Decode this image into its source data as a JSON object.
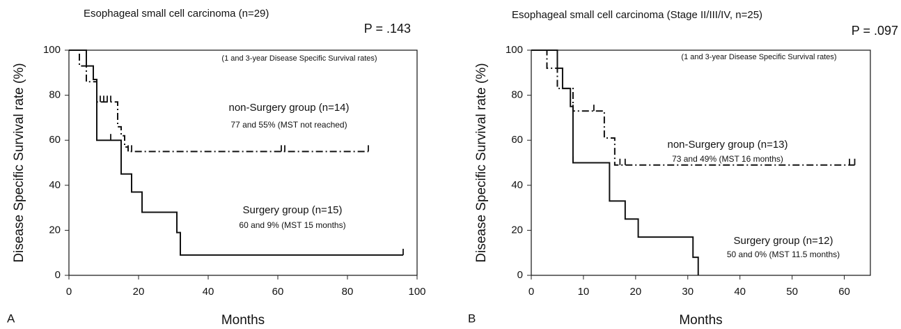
{
  "chart_data": [
    {
      "type": "step",
      "panel": "A",
      "title": "Esophageal small cell carcinoma (n=29)",
      "p_value": "P = .143",
      "subtitle": "(1 and 3-year Disease Specific Survival rates)",
      "x_label": "Months",
      "y_label": "Disease Specific Survival rate (%)",
      "xlim": [
        0,
        100
      ],
      "xticks": [
        0,
        20,
        40,
        60,
        80,
        100
      ],
      "ylim": [
        0,
        100
      ],
      "yticks": [
        0,
        20,
        40,
        60,
        80,
        100
      ],
      "series": [
        {
          "name": "non-Surgery group (n=14)",
          "note": "77 and 55% (MST not reached)",
          "color": "#111111",
          "dash": "dashdot",
          "x": [
            0,
            3,
            5,
            8,
            14,
            15,
            16,
            17,
            86
          ],
          "values": [
            100,
            93,
            86,
            77,
            66,
            62,
            57,
            55,
            55
          ],
          "censored": [
            9,
            10,
            11,
            12,
            17,
            18,
            61,
            62,
            86
          ]
        },
        {
          "name": "Surgery group (n=15)",
          "note": "60 and 9% (MST 15 months)",
          "color": "#111111",
          "dash": "solid",
          "x": [
            0,
            5,
            7,
            8,
            15,
            18,
            21,
            31,
            32,
            96
          ],
          "values": [
            100,
            93,
            87,
            60,
            45,
            37,
            28,
            19,
            9,
            9
          ],
          "censored": [
            12,
            96
          ]
        }
      ]
    },
    {
      "type": "step",
      "panel": "B",
      "title": "Esophageal small cell carcinoma (Stage II/III/IV, n=25)",
      "p_value": "P = .097",
      "subtitle": "(1 and 3-year Disease Specific Survival rates)",
      "x_label": "Months",
      "y_label": "Disease Specific Survival rate (%)",
      "xlim": [
        0,
        65
      ],
      "xticks": [
        0,
        10,
        20,
        30,
        40,
        50,
        60
      ],
      "ylim": [
        0,
        100
      ],
      "yticks": [
        0,
        20,
        40,
        60,
        80,
        100
      ],
      "series": [
        {
          "name": "non-Surgery group (n=13)",
          "note": "73 and 49% (MST 16 months)",
          "color": "#111111",
          "dash": "dashdot",
          "x": [
            0,
            3,
            5,
            8,
            14,
            16,
            62
          ],
          "values": [
            100,
            92,
            83,
            73,
            61,
            49,
            49
          ],
          "censored": [
            8,
            12,
            17,
            18,
            61,
            62
          ]
        },
        {
          "name": "Surgery group (n=12)",
          "note": "50 and 0% (MST 11.5 months)",
          "color": "#111111",
          "dash": "solid",
          "x": [
            0,
            5,
            6,
            7.5,
            8,
            15,
            18,
            20.5,
            31,
            32
          ],
          "values": [
            100,
            92,
            83,
            75,
            50,
            33,
            25,
            17,
            8,
            0
          ],
          "censored": [
            8
          ]
        }
      ]
    }
  ]
}
